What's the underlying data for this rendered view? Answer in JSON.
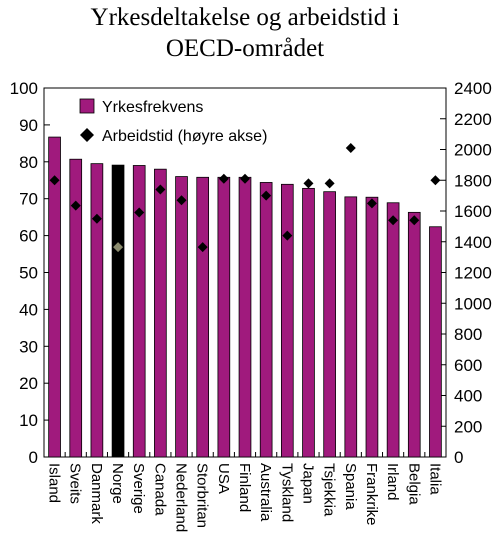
{
  "chart_data": {
    "type": "bar",
    "title_lines": [
      "Yrkesdeltakelse og arbeidstid i",
      "OECD-området"
    ],
    "categories": [
      "Island",
      "Sveits",
      "Danmark",
      "Norge",
      "Sverige",
      "Canada",
      "Nederland",
      "Storbritan",
      "USA",
      "Finland",
      "Australia",
      "Tyskland",
      "Japan",
      "Tsjekkia",
      "Spania",
      "Frankrike",
      "Irland",
      "Belgia",
      "Italia"
    ],
    "series": [
      {
        "name": "Yrkesfrekvens",
        "kind": "bar",
        "axis": "left",
        "values": [
          86.7,
          80.7,
          79.5,
          79.1,
          79.0,
          78.0,
          76.0,
          75.8,
          75.8,
          75.8,
          74.4,
          73.9,
          72.8,
          71.9,
          70.5,
          70.4,
          68.9,
          66.3,
          62.4
        ]
      },
      {
        "name": "Arbeidstid (høyre akse)",
        "kind": "marker",
        "axis": "right",
        "values": [
          1800,
          1635,
          1550,
          1365,
          1590,
          1740,
          1670,
          1365,
          1810,
          1810,
          1700,
          1440,
          1780,
          1780,
          2010,
          1650,
          1540,
          1540,
          1800
        ]
      }
    ],
    "y_left": {
      "min": 0,
      "max": 100,
      "step": 10,
      "ticks": [
        "0",
        "10",
        "20",
        "30",
        "40",
        "50",
        "60",
        "70",
        "80",
        "90",
        "100"
      ]
    },
    "y_right": {
      "min": 0,
      "max": 2400,
      "step": 200,
      "ticks": [
        "0",
        "200",
        "400",
        "600",
        "800",
        "1000",
        "1200",
        "1400",
        "1600",
        "1800",
        "2000",
        "2200",
        "2400"
      ]
    },
    "highlight_category": "Norge",
    "colors": {
      "bar": "#a01a7d",
      "bar_highlight": "#000000",
      "marker": "#000000",
      "marker_highlight": "#8b8b6e"
    },
    "legend_placement": "top-left",
    "grid": false
  }
}
